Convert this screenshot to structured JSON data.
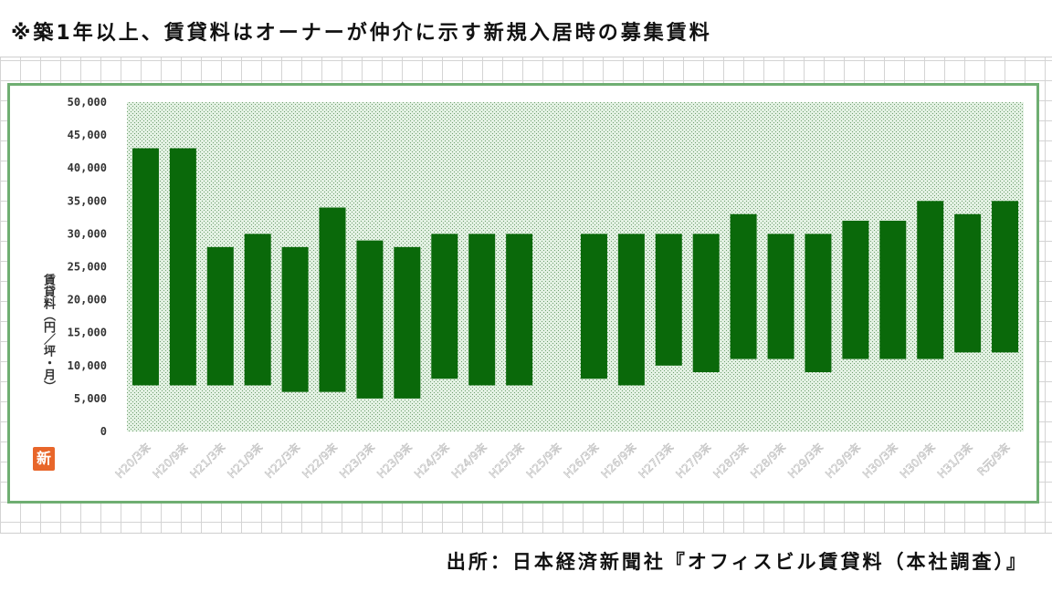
{
  "note": "※築1年以上、賃貸料はオーナーが仲介に示す新規入居時の募集賃料",
  "source": "出所：日本経済新聞社『オフィスビル賃貸料（本社調査）』",
  "badge": "新",
  "colors": {
    "bar": "#0a690a",
    "plot_bg": "#e3f1e3",
    "plot_dot": "#6e9e6e",
    "frame": "#6fae72"
  },
  "chart_data": {
    "type": "bar",
    "bar_mode": "floating",
    "title": "",
    "xlabel": "",
    "ylabel": "賃貸料（円／坪・月）",
    "ylim": [
      0,
      50000
    ],
    "yticks": [
      "0",
      "5,000",
      "10,000",
      "15,000",
      "20,000",
      "25,000",
      "30,000",
      "35,000",
      "40,000",
      "45,000",
      "50,000"
    ],
    "categories": [
      "H20/3末",
      "H20/9末",
      "H21/3末",
      "H21/9末",
      "H22/3末",
      "H22/9末",
      "H23/3末",
      "H23/9末",
      "H24/3末",
      "H24/9末",
      "H25/3末",
      "H25/9末",
      "H26/3末",
      "H26/9末",
      "H27/3末",
      "H27/9末",
      "H28/3末",
      "H28/9末",
      "H29/3末",
      "H29/9末",
      "H30/3末",
      "H30/9末",
      "H31/3末",
      "R元/9末"
    ],
    "low": [
      7000,
      7000,
      7000,
      7000,
      6000,
      6000,
      5000,
      5000,
      8000,
      7000,
      7000,
      null,
      8000,
      7000,
      10000,
      9000,
      11000,
      11000,
      9000,
      11000,
      11000,
      11000,
      12000,
      12000
    ],
    "high": [
      43000,
      43000,
      28000,
      30000,
      28000,
      34000,
      29000,
      28000,
      30000,
      30000,
      30000,
      null,
      30000,
      30000,
      30000,
      30000,
      33000,
      30000,
      30000,
      32000,
      32000,
      35000,
      33000,
      35000
    ],
    "grid": false,
    "legend": "none"
  }
}
